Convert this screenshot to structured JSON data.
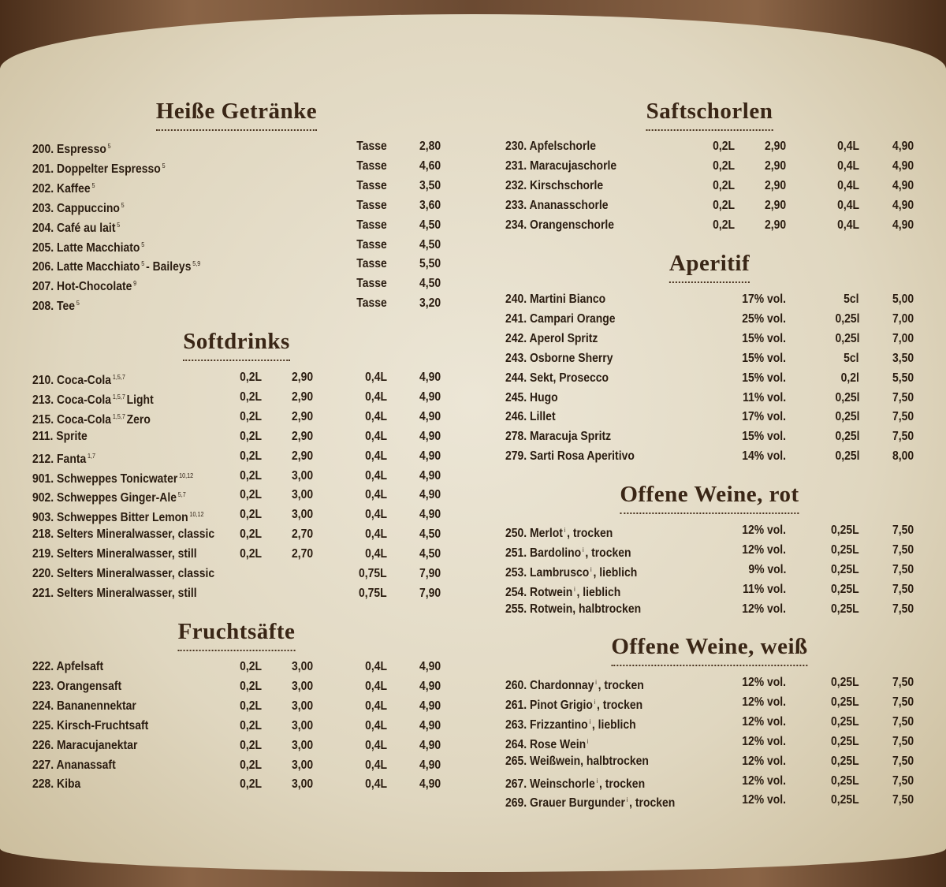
{
  "sections": [
    {
      "heading": "Heiße Getränke",
      "items": [
        {
          "num": "200.",
          "name": [
            "Espresso",
            "5"
          ],
          "cols": [
            "Tasse",
            "2,80"
          ]
        },
        {
          "num": "201.",
          "name": [
            "Doppelter Espresso",
            "5"
          ],
          "cols": [
            "Tasse",
            "4,60"
          ]
        },
        {
          "num": "202.",
          "name": [
            "Kaffee",
            "5"
          ],
          "cols": [
            "Tasse",
            "3,50"
          ]
        },
        {
          "num": "203.",
          "name": [
            "Cappuccino",
            "5"
          ],
          "cols": [
            "Tasse",
            "3,60"
          ]
        },
        {
          "num": "204.",
          "name": [
            "Café au lait",
            "5"
          ],
          "cols": [
            "Tasse",
            "4,50"
          ]
        },
        {
          "num": "205.",
          "name": [
            "Latte Macchiato",
            "5"
          ],
          "cols": [
            "Tasse",
            "4,50"
          ]
        },
        {
          "num": "206.",
          "name": [
            "Latte Macchiato",
            "5",
            "- Baileys",
            "5,9"
          ],
          "cols": [
            "Tasse",
            "5,50"
          ]
        },
        {
          "num": "207.",
          "name": [
            "Hot-Chocolate",
            "9"
          ],
          "cols": [
            "Tasse",
            "4,50"
          ]
        },
        {
          "num": "208.",
          "name": [
            "Tee",
            "5"
          ],
          "cols": [
            "Tasse",
            "3,20"
          ]
        }
      ]
    },
    {
      "heading": "Softdrinks",
      "items": [
        {
          "num": "210.",
          "name": [
            "Coca-Cola",
            "1,5,7"
          ],
          "cols": [
            "0,2L",
            "2,90",
            "0,4L",
            "4,90"
          ]
        },
        {
          "num": "213.",
          "name": [
            "Coca-Cola",
            "1,5,7",
            "Light"
          ],
          "cols": [
            "0,2L",
            "2,90",
            "0,4L",
            "4,90"
          ]
        },
        {
          "num": "215.",
          "name": [
            "Coca-Cola",
            "1,5,7",
            "Zero"
          ],
          "cols": [
            "0,2L",
            "2,90",
            "0,4L",
            "4,90"
          ]
        },
        {
          "num": "211.",
          "name": [
            "Sprite"
          ],
          "cols": [
            "0,2L",
            "2,90",
            "0,4L",
            "4,90"
          ]
        },
        {
          "num": "212.",
          "name": [
            "Fanta",
            "1,7"
          ],
          "cols": [
            "0,2L",
            "2,90",
            "0,4L",
            "4,90"
          ]
        },
        {
          "num": "901.",
          "name": [
            "Schweppes Tonicwater",
            "10,12"
          ],
          "cols": [
            "0,2L",
            "3,00",
            "0,4L",
            "4,90"
          ]
        },
        {
          "num": "902.",
          "name": [
            "Schweppes Ginger-Ale",
            "5,7"
          ],
          "cols": [
            "0,2L",
            "3,00",
            "0,4L",
            "4,90"
          ]
        },
        {
          "num": "903.",
          "name": [
            "Schweppes Bitter Lemon",
            "10,12"
          ],
          "cols": [
            "0,2L",
            "3,00",
            "0,4L",
            "4,90"
          ]
        },
        {
          "num": "218.",
          "name": [
            "Selters Mineralwasser, classic"
          ],
          "cols": [
            "0,2L",
            "2,70",
            "0,4L",
            "4,50"
          ]
        },
        {
          "num": "219.",
          "name": [
            "Selters Mineralwasser, still"
          ],
          "cols": [
            "0,2L",
            "2,70",
            "0,4L",
            "4,50"
          ]
        },
        {
          "num": "220.",
          "name": [
            "Selters Mineralwasser, classic"
          ],
          "cols": [
            null,
            null,
            "0,75L",
            "7,90"
          ]
        },
        {
          "num": "221.",
          "name": [
            "Selters Mineralwasser, still"
          ],
          "cols": [
            null,
            null,
            "0,75L",
            "7,90"
          ]
        }
      ]
    },
    {
      "heading": "Fruchtsäfte",
      "items": [
        {
          "num": "222.",
          "name": [
            "Apfelsaft"
          ],
          "cols": [
            "0,2L",
            "3,00",
            "0,4L",
            "4,90"
          ]
        },
        {
          "num": "223.",
          "name": [
            "Orangensaft"
          ],
          "cols": [
            "0,2L",
            "3,00",
            "0,4L",
            "4,90"
          ]
        },
        {
          "num": "224.",
          "name": [
            "Bananennektar"
          ],
          "cols": [
            "0,2L",
            "3,00",
            "0,4L",
            "4,90"
          ]
        },
        {
          "num": "225.",
          "name": [
            "Kirsch-Fruchtsaft"
          ],
          "cols": [
            "0,2L",
            "3,00",
            "0,4L",
            "4,90"
          ]
        },
        {
          "num": "226.",
          "name": [
            "Maracujanektar"
          ],
          "cols": [
            "0,2L",
            "3,00",
            "0,4L",
            "4,90"
          ]
        },
        {
          "num": "227.",
          "name": [
            "Ananassaft"
          ],
          "cols": [
            "0,2L",
            "3,00",
            "0,4L",
            "4,90"
          ]
        },
        {
          "num": "228.",
          "name": [
            "Kiba"
          ],
          "cols": [
            "0,2L",
            "3,00",
            "0,4L",
            "4,90"
          ]
        }
      ]
    },
    {
      "heading": "Saftschorlen",
      "items": [
        {
          "num": "230.",
          "name": [
            "Apfelschorle"
          ],
          "cols": [
            "0,2L",
            "2,90",
            "0,4L",
            "4,90"
          ]
        },
        {
          "num": "231.",
          "name": [
            "Maracujaschorle"
          ],
          "cols": [
            "0,2L",
            "2,90",
            "0,4L",
            "4,90"
          ]
        },
        {
          "num": "232.",
          "name": [
            "Kirschschorle"
          ],
          "cols": [
            "0,2L",
            "2,90",
            "0,4L",
            "4,90"
          ]
        },
        {
          "num": "233.",
          "name": [
            "Ananasschorle"
          ],
          "cols": [
            "0,2L",
            "2,90",
            "0,4L",
            "4,90"
          ]
        },
        {
          "num": "234.",
          "name": [
            "Orangenschorle"
          ],
          "cols": [
            "0,2L",
            "2,90",
            "0,4L",
            "4,90"
          ]
        }
      ]
    },
    {
      "heading": "Aperitif",
      "items": [
        {
          "num": "240.",
          "name": [
            "Martini Bianco"
          ],
          "cols": [
            "17% vol.",
            "5cl",
            "5,00"
          ]
        },
        {
          "num": "241.",
          "name": [
            "Campari Orange"
          ],
          "cols": [
            "25% vol.",
            "0,25l",
            "7,00"
          ]
        },
        {
          "num": "242.",
          "name": [
            "Aperol Spritz"
          ],
          "cols": [
            "15% vol.",
            "0,25l",
            "7,00"
          ]
        },
        {
          "num": "243.",
          "name": [
            "Osborne Sherry"
          ],
          "cols": [
            "15% vol.",
            "5cl",
            "3,50"
          ]
        },
        {
          "num": "244.",
          "name": [
            "Sekt, Prosecco"
          ],
          "cols": [
            "15% vol.",
            "0,2l",
            "5,50"
          ]
        },
        {
          "num": "245.",
          "name": [
            "Hugo"
          ],
          "cols": [
            "11% vol.",
            "0,25l",
            "7,50"
          ]
        },
        {
          "num": "246.",
          "name": [
            "Lillet"
          ],
          "cols": [
            "17% vol.",
            "0,25l",
            "7,50"
          ]
        },
        {
          "num": "278.",
          "name": [
            "Maracuja Spritz"
          ],
          "cols": [
            "15% vol.",
            "0,25l",
            "7,50"
          ]
        },
        {
          "num": "279.",
          "name": [
            "Sarti Rosa Aperitivo"
          ],
          "cols": [
            "14% vol.",
            "0,25l",
            "8,00"
          ]
        }
      ]
    },
    {
      "heading": "Offene Weine, rot",
      "items": [
        {
          "num": "250.",
          "name": [
            "Merlot",
            "i",
            ", trocken"
          ],
          "cols": [
            "12% vol.",
            "0,25L",
            "7,50"
          ]
        },
        {
          "num": "251.",
          "name": [
            "Bardolino",
            "i",
            ", trocken"
          ],
          "cols": [
            "12% vol.",
            "0,25L",
            "7,50"
          ]
        },
        {
          "num": "253.",
          "name": [
            "Lambrusco",
            "i",
            ", lieblich"
          ],
          "cols": [
            "9% vol.",
            "0,25L",
            "7,50"
          ]
        },
        {
          "num": "254.",
          "name": [
            "Rotwein",
            "i",
            ", lieblich"
          ],
          "cols": [
            "11% vol.",
            "0,25L",
            "7,50"
          ]
        },
        {
          "num": "255.",
          "name": [
            "Rotwein, halbtrocken"
          ],
          "cols": [
            "12% vol.",
            "0,25L",
            "7,50"
          ]
        }
      ]
    },
    {
      "heading": "Offene Weine, weiß",
      "items": [
        {
          "num": "260.",
          "name": [
            "Chardonnay",
            "i",
            ", trocken"
          ],
          "cols": [
            "12% vol.",
            "0,25L",
            "7,50"
          ]
        },
        {
          "num": "261.",
          "name": [
            "Pinot Grigio",
            "i",
            ", trocken"
          ],
          "cols": [
            "12% vol.",
            "0,25L",
            "7,50"
          ]
        },
        {
          "num": "263.",
          "name": [
            "Frizzantino",
            "i",
            ", lieblich"
          ],
          "cols": [
            "12% vol.",
            "0,25L",
            "7,50"
          ]
        },
        {
          "num": "264.",
          "name": [
            "Rose Wein",
            "i"
          ],
          "cols": [
            "12% vol.",
            "0,25L",
            "7,50"
          ]
        },
        {
          "num": "265.",
          "name": [
            "Weißwein, halbtrocken"
          ],
          "cols": [
            "12% vol.",
            "0,25L",
            "7,50"
          ]
        },
        {
          "num": "267.",
          "name": [
            "Weinschorle",
            "i",
            ", trocken"
          ],
          "cols": [
            "12% vol.",
            "0,25L",
            "7,50"
          ]
        },
        {
          "num": "269.",
          "name": [
            "Grauer Burgunder",
            "i",
            ", trocken"
          ],
          "cols": [
            "12% vol.",
            "0,25L",
            "7,50"
          ]
        }
      ]
    }
  ]
}
